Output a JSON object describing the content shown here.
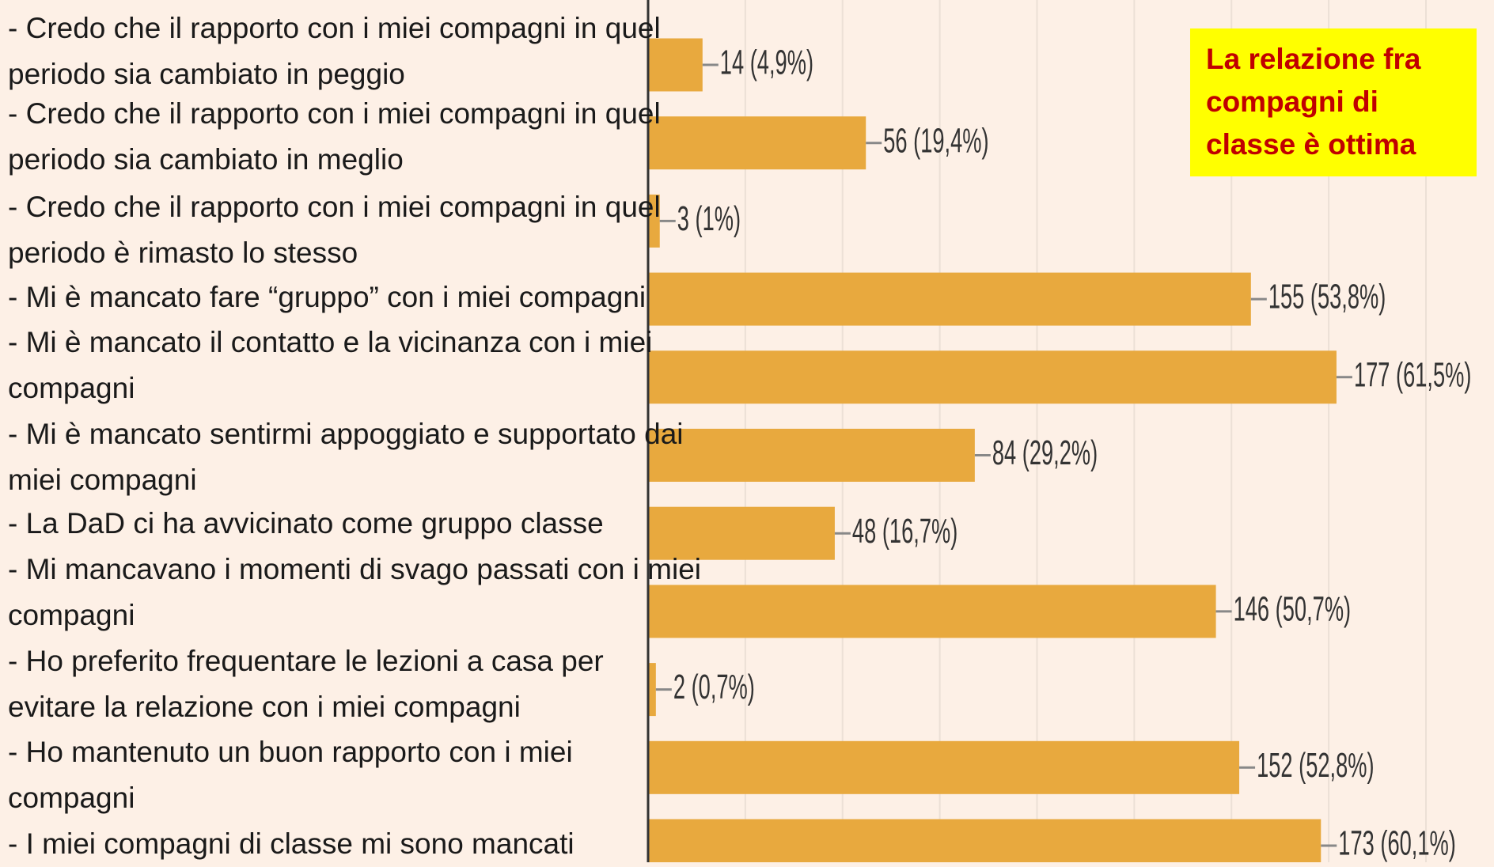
{
  "chart_data": {
    "type": "bar",
    "orientation": "horizontal",
    "categories": [
      "- Credo che il rapporto con i miei compagni in quel\nperiodo sia cambiato in peggio",
      "- Credo che il rapporto con i miei compagni in quel\nperiodo sia cambiato in meglio",
      "- Credo che il rapporto con i miei compagni in quel\nperiodo è rimasto lo stesso",
      "- Mi è mancato fare “gruppo” con i miei compagni",
      "- Mi è mancato il contatto e la vicinanza con i miei\ncompagni",
      "- Mi è mancato sentirmi appoggiato e supportato dai\nmiei compagni",
      "- La DaD ci ha avvicinato come gruppo classe",
      "- Mi mancavano i momenti di svago passati con i miei\ncompagni",
      "- Ho preferito frequentare le lezioni a casa per\nevitare la relazione con i miei compagni",
      "- Ho mantenuto un buon rapporto con i miei\ncompagni",
      "- I miei compagni di classe mi sono mancati"
    ],
    "values": [
      14,
      56,
      3,
      155,
      177,
      84,
      48,
      146,
      2,
      152,
      173
    ],
    "value_labels": [
      "14 (4,9%)",
      "56 (19,4%)",
      "3 (1%)",
      "155 (53,8%)",
      "177 (61,5%)",
      "84 (29,2%)",
      "48 (16,7%)",
      "146 (50,7%)",
      "2 (0,7%)",
      "152 (52,8%)",
      "173 (60,1%)"
    ],
    "color": "#e8a93e",
    "xlim": [
      0,
      217.5
    ],
    "xticks": [
      0,
      25,
      50,
      75,
      100,
      125,
      150,
      175,
      200
    ],
    "grid": true,
    "annotation": "La relazione fra\ncompagni di\nclasse è ottima"
  }
}
